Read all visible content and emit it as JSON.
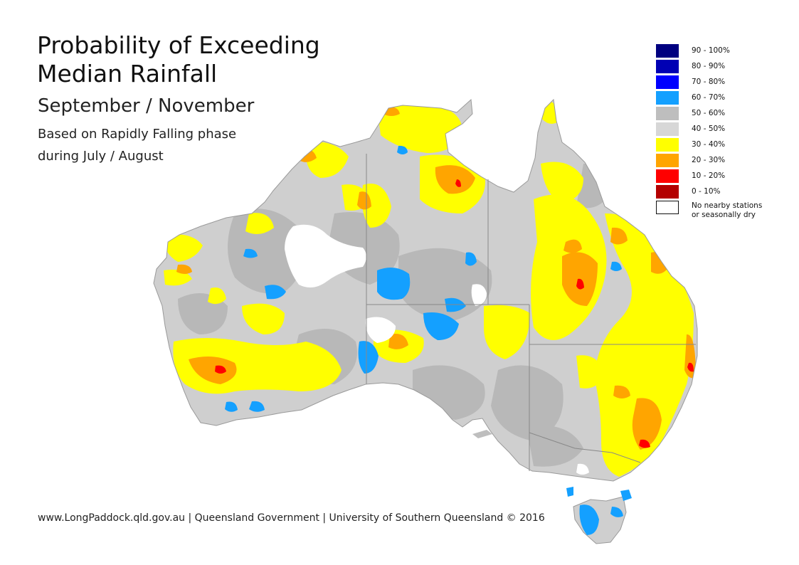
{
  "title_line1": "Probability of Exceeding",
  "title_line2": "Median Rainfall",
  "subtitle": "September / November",
  "description_line1": "Based on Rapidly Falling phase",
  "description_line2": "during July / August",
  "footer": "www.LongPaddock.qld.gov.au | Queensland Government | University of Southern Queensland © 2016",
  "legend": [
    {
      "label": "90 - 100%",
      "color": "#000080"
    },
    {
      "label": "80 - 90%",
      "color": "#0000b4"
    },
    {
      "label": "70 - 80%",
      "color": "#0000ff"
    },
    {
      "label": "60 - 70%",
      "color": "#14a0ff"
    },
    {
      "label": "50 - 60%",
      "color": "#bebebe"
    },
    {
      "label": "40 - 50%",
      "color": "#d7d7d7"
    },
    {
      "label": "30 - 40%",
      "color": "#ffff00"
    },
    {
      "label": "20 - 30%",
      "color": "#ffa500"
    },
    {
      "label": "10 - 20%",
      "color": "#ff0000"
    },
    {
      "label": "0 - 10%",
      "color": "#b40000"
    }
  ],
  "legend_no_data": {
    "label_line1": "No nearby stations",
    "label_line2": "or seasonally dry",
    "color": "#ffffff"
  }
}
